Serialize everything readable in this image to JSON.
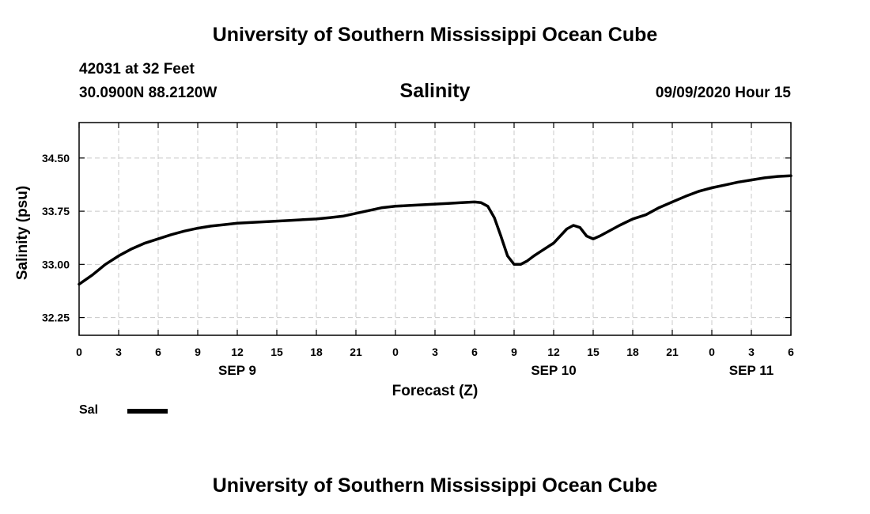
{
  "header": {
    "title": "University of Southern Mississippi Ocean Cube",
    "station": "42031 at 32 Feet",
    "coords": "30.0900N 88.2120W",
    "variable": "Salinity",
    "datetime": "09/09/2020 Hour 15"
  },
  "footer": {
    "title": "University of Southern Mississippi Ocean Cube"
  },
  "legend": {
    "label": "Sal",
    "color": "#000000"
  },
  "chart_data": {
    "type": "line",
    "title": "Salinity",
    "xlabel": "Forecast (Z)",
    "ylabel": "Salinity (psu)",
    "xlim": [
      0,
      54
    ],
    "ylim": [
      32.0,
      35.0
    ],
    "grid": true,
    "x_ticks": [
      0,
      3,
      6,
      9,
      12,
      15,
      18,
      21,
      24,
      27,
      30,
      33,
      36,
      39,
      42,
      45,
      48,
      51,
      54
    ],
    "x_tick_labels": [
      "0",
      "3",
      "6",
      "9",
      "12",
      "15",
      "18",
      "21",
      "0",
      "3",
      "6",
      "9",
      "12",
      "15",
      "18",
      "21",
      "0",
      "3",
      "6"
    ],
    "y_ticks": [
      32.25,
      33.0,
      33.75,
      34.5
    ],
    "y_tick_labels": [
      "32.25",
      "33.00",
      "33.75",
      "34.50"
    ],
    "day_labels": [
      {
        "x": 12,
        "label": "SEP 9"
      },
      {
        "x": 36,
        "label": "SEP 10"
      },
      {
        "x": 51,
        "label": "SEP 11"
      }
    ],
    "series": [
      {
        "name": "Sal",
        "x": [
          0,
          1,
          2,
          3,
          4,
          5,
          6,
          7,
          8,
          9,
          10,
          11,
          12,
          13,
          14,
          15,
          16,
          17,
          18,
          19,
          20,
          21,
          22,
          23,
          24,
          25,
          26,
          27,
          28,
          29,
          30,
          30.5,
          31,
          31.5,
          32,
          32.5,
          33,
          33.5,
          34,
          34.5,
          35,
          36,
          37,
          37.5,
          38,
          38.5,
          39,
          39.5,
          40,
          41,
          42,
          43,
          44,
          45,
          46,
          47,
          48,
          49,
          50,
          51,
          52,
          53,
          54
        ],
        "values": [
          32.72,
          32.85,
          33.0,
          33.12,
          33.22,
          33.3,
          33.36,
          33.42,
          33.47,
          33.51,
          33.54,
          33.56,
          33.58,
          33.59,
          33.6,
          33.61,
          33.62,
          33.63,
          33.64,
          33.66,
          33.68,
          33.72,
          33.76,
          33.8,
          33.82,
          33.83,
          33.84,
          33.85,
          33.86,
          33.87,
          33.88,
          33.87,
          33.82,
          33.66,
          33.4,
          33.12,
          33.0,
          33.0,
          33.05,
          33.12,
          33.18,
          33.3,
          33.5,
          33.55,
          33.52,
          33.4,
          33.36,
          33.4,
          33.45,
          33.55,
          33.64,
          33.7,
          33.8,
          33.88,
          33.96,
          34.03,
          34.08,
          34.12,
          34.16,
          34.19,
          34.22,
          34.24,
          34.25
        ]
      }
    ]
  }
}
